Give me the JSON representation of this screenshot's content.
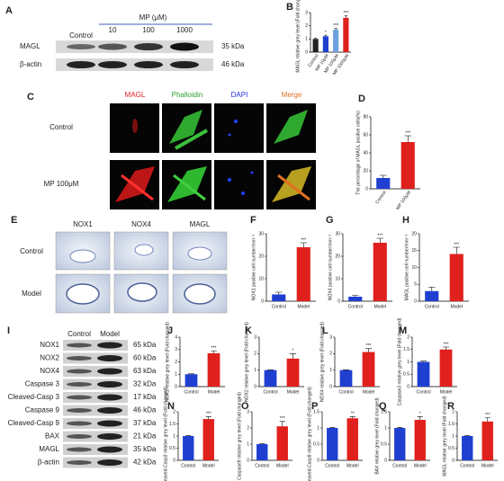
{
  "figure": {
    "panel_labels": [
      "A",
      "B",
      "C",
      "D",
      "E",
      "F",
      "G",
      "H",
      "I",
      "J",
      "K",
      "L",
      "M",
      "N",
      "O",
      "P",
      "Q",
      "R"
    ]
  },
  "panel_a": {
    "columns": [
      "Control",
      "10",
      "100",
      "1000"
    ],
    "group_label": "MP (μM)",
    "rows": [
      "MAGL",
      "β-actin"
    ],
    "sizes": [
      "35 kDa",
      "46 kDa"
    ]
  },
  "panel_c": {
    "columns": [
      "MAGL",
      "Phalloidin",
      "DAPI",
      "Merge"
    ],
    "rows": [
      "Control",
      "MP 100μM"
    ]
  },
  "panel_e": {
    "columns": [
      "NOX1",
      "NOX4",
      "MAGL"
    ],
    "rows": [
      "Control",
      "Model"
    ]
  },
  "panel_i": {
    "columns": [
      "Control",
      "Model"
    ],
    "rows": [
      "NOX1",
      "NOX2",
      "NOX4",
      "Caspase 3",
      "Cleaved-Casp 3",
      "Caspase 9",
      "Cleaved-Casp 9",
      "BAX",
      "MAGL",
      "β-actin"
    ],
    "sizes": [
      "65 kDa",
      "60 kDa",
      "63 kDa",
      "32 kDa",
      "17 kDa",
      "46 kDa",
      "37 kDa",
      "21 kDa",
      "35 kDa",
      "42 kDa"
    ]
  },
  "chart_data": [
    {
      "type": "bar",
      "ylabel": "MAGL relative grey level (Fold changed)",
      "categories": [
        "Control",
        "MP 10μM",
        "MP 100μM",
        "MP 1000μM"
      ],
      "values": [
        1,
        1.2,
        1.7,
        2.6
      ],
      "errors": [
        0.05,
        0.08,
        0.1,
        0.15
      ],
      "significance": [
        null,
        "*",
        "***",
        "***"
      ],
      "colors": [
        "#222222",
        "#1f3fd1",
        "#6fa0e0",
        "#e0201c"
      ],
      "ylim": [
        0,
        3
      ],
      "yticks": [
        0,
        1,
        2,
        3
      ]
    },
    {
      "type": "bar",
      "ylabel": "The percentage of MAGL positive cells(%)",
      "categories": [
        "Control",
        "MP 100μM"
      ],
      "values": [
        12,
        52
      ],
      "errors": [
        3,
        7
      ],
      "significance": [
        null,
        "***"
      ],
      "colors": [
        "#1f3fd1",
        "#e0201c"
      ],
      "ylim": [
        0,
        80
      ],
      "yticks": [
        0,
        20,
        40,
        60,
        80
      ]
    },
    {
      "type": "bar",
      "ylabel": "NOX1 positive cell number/mm⁻²",
      "categories": [
        "Control",
        "Model"
      ],
      "values": [
        3,
        24
      ],
      "errors": [
        1,
        2
      ],
      "significance": [
        null,
        "***"
      ],
      "colors": [
        "#1f3fd1",
        "#e0201c"
      ],
      "ylim": [
        0,
        30
      ],
      "yticks": [
        0,
        10,
        20,
        30
      ]
    },
    {
      "type": "bar",
      "ylabel": "NOX4 positive cell number/mm⁻²",
      "categories": [
        "Control",
        "Model"
      ],
      "values": [
        2,
        26
      ],
      "errors": [
        0.6,
        2
      ],
      "significance": [
        null,
        "***"
      ],
      "colors": [
        "#1f3fd1",
        "#e0201c"
      ],
      "ylim": [
        0,
        30
      ],
      "yticks": [
        0,
        10,
        20,
        30
      ]
    },
    {
      "type": "bar",
      "ylabel": "MAGL positive cell number/mm⁻²",
      "categories": [
        "Control",
        "Model"
      ],
      "values": [
        3,
        14
      ],
      "errors": [
        1.2,
        2
      ],
      "significance": [
        null,
        "***"
      ],
      "colors": [
        "#1f3fd1",
        "#e0201c"
      ],
      "ylim": [
        0,
        20
      ],
      "yticks": [
        0,
        5,
        10,
        15,
        20
      ]
    },
    {
      "type": "bar",
      "ylabel": "NOX1 relative grey level (Fold changed)",
      "categories": [
        "Control",
        "Model"
      ],
      "values": [
        1,
        2.7
      ],
      "errors": [
        0.03,
        0.2
      ],
      "significance": [
        null,
        "***"
      ],
      "colors": [
        "#1f3fd1",
        "#e0201c"
      ],
      "ylim": [
        0,
        4
      ],
      "yticks": [
        0,
        1,
        2,
        3,
        4
      ]
    },
    {
      "type": "bar",
      "ylabel": "NOX2 relative grey level (Fold changed)",
      "categories": [
        "Control",
        "Model"
      ],
      "values": [
        1,
        1.7
      ],
      "errors": [
        0.02,
        0.3
      ],
      "significance": [
        null,
        "*"
      ],
      "colors": [
        "#1f3fd1",
        "#e0201c"
      ],
      "ylim": [
        0,
        3
      ],
      "yticks": [
        0,
        1,
        2,
        3
      ]
    },
    {
      "type": "bar",
      "ylabel": "NOX4 relative grey level (Fold changed)",
      "categories": [
        "Control",
        "Model"
      ],
      "values": [
        1,
        2.1
      ],
      "errors": [
        0.02,
        0.2
      ],
      "significance": [
        null,
        "***"
      ],
      "colors": [
        "#1f3fd1",
        "#e0201c"
      ],
      "ylim": [
        0,
        3
      ],
      "yticks": [
        0,
        1,
        2,
        3
      ]
    },
    {
      "type": "bar",
      "ylabel": "Caspase3 relative grey level (Fold changed)",
      "categories": [
        "Control",
        "Model"
      ],
      "values": [
        1,
        1.5
      ],
      "errors": [
        0.03,
        0.1
      ],
      "significance": [
        null,
        "***"
      ],
      "colors": [
        "#1f3fd1",
        "#e0201c"
      ],
      "ylim": [
        0,
        2
      ],
      "yticks": [
        0,
        0.5,
        1,
        1.5,
        2
      ]
    },
    {
      "type": "bar",
      "ylabel": "Cleaved-Casp3 relative grey level (Fold changed)",
      "categories": [
        "Control",
        "Model"
      ],
      "values": [
        1,
        1.7
      ],
      "errors": [
        0.02,
        0.1
      ],
      "significance": [
        null,
        "***"
      ],
      "colors": [
        "#1f3fd1",
        "#e0201c"
      ],
      "ylim": [
        0,
        2
      ],
      "yticks": [
        0,
        0.5,
        1,
        1.5,
        2
      ]
    },
    {
      "type": "bar",
      "ylabel": "Caspase9 relative grey level (Fold changed)",
      "categories": [
        "Control",
        "Model"
      ],
      "values": [
        1,
        2.1
      ],
      "errors": [
        0.02,
        0.3
      ],
      "significance": [
        null,
        "***"
      ],
      "colors": [
        "#1f3fd1",
        "#e0201c"
      ],
      "ylim": [
        0,
        3
      ],
      "yticks": [
        0,
        1,
        2,
        3
      ]
    },
    {
      "type": "bar",
      "ylabel": "Cleaved-Casp9 relative grey level (Fold changed)",
      "categories": [
        "Control",
        "Model"
      ],
      "values": [
        1,
        1.3
      ],
      "errors": [
        0.02,
        0.05
      ],
      "significance": [
        null,
        "**"
      ],
      "colors": [
        "#1f3fd1",
        "#e0201c"
      ],
      "ylim": [
        0,
        1.5
      ],
      "yticks": [
        0,
        0.5,
        1,
        1.5
      ]
    },
    {
      "type": "bar",
      "ylabel": "BAX relative grey level (Fold changed)",
      "categories": [
        "Control",
        "Model"
      ],
      "values": [
        1,
        1.25
      ],
      "errors": [
        0.02,
        0.1
      ],
      "significance": [
        null,
        "*"
      ],
      "colors": [
        "#1f3fd1",
        "#e0201c"
      ],
      "ylim": [
        0,
        1.5
      ],
      "yticks": [
        0,
        0.5,
        1,
        1.5
      ]
    },
    {
      "type": "bar",
      "ylabel": "MAGL relative grey level (Fold changed)",
      "categories": [
        "Control",
        "Model"
      ],
      "values": [
        1,
        1.6
      ],
      "errors": [
        0.02,
        0.15
      ],
      "significance": [
        null,
        "***"
      ],
      "colors": [
        "#1f3fd1",
        "#e0201c"
      ],
      "ylim": [
        0,
        2
      ],
      "yticks": [
        0,
        0.5,
        1,
        1.5,
        2
      ]
    }
  ]
}
